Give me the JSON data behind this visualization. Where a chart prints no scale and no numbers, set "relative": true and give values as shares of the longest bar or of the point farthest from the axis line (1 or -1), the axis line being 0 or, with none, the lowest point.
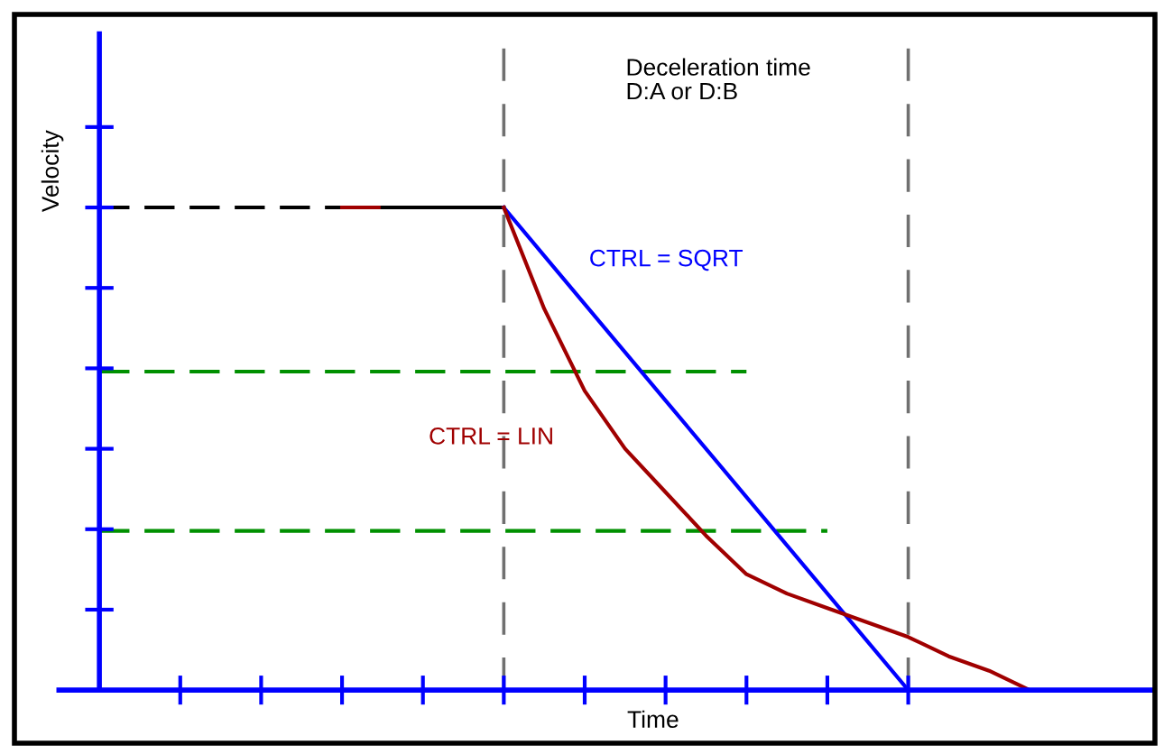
{
  "chart_data": {
    "type": "line",
    "relative": true,
    "xlabel": "Time",
    "ylabel": "Velocity",
    "annotations": [
      "Deceleration time\nD:A or D:B"
    ],
    "categories": [
      null,
      null,
      null,
      null,
      null,
      null,
      null,
      null,
      null,
      null,
      null,
      null,
      null,
      null,
      null,
      null,
      null,
      null,
      null,
      null,
      null,
      null,
      null,
      null,
      null,
      null,
      null
    ],
    "legend": false,
    "marker": "none",
    "series": [
      {
        "color": "#000000",
        "line_style": "dashed",
        "values": [
          1,
          1,
          1,
          1,
          1,
          1,
          1,
          null,
          null,
          null,
          null,
          null,
          null,
          null,
          null,
          null,
          null,
          null,
          null,
          null,
          null,
          null,
          null,
          null,
          null,
          null,
          null
        ]
      },
      {
        "color": "#a00000",
        "line_style": "solid",
        "values": [
          null,
          null,
          null,
          null,
          null,
          null,
          1,
          1,
          null,
          null,
          null,
          null,
          null,
          null,
          null,
          null,
          null,
          null,
          null,
          null,
          null,
          null,
          null,
          null,
          null,
          null,
          null
        ]
      },
      {
        "color": "#000000",
        "line_style": "solid",
        "values": [
          null,
          null,
          null,
          null,
          null,
          null,
          null,
          1,
          1,
          1,
          1,
          null,
          null,
          null,
          null,
          null,
          null,
          null,
          null,
          null,
          null,
          null,
          null,
          null,
          null,
          null,
          null
        ]
      },
      {
        "color": "#009000",
        "line_style": "dashed",
        "values": [
          0.66,
          0.66,
          0.66,
          0.66,
          0.66,
          0.66,
          0.66,
          0.66,
          0.66,
          0.66,
          0.66,
          0.66,
          0.66,
          0.66,
          0.66,
          0.66,
          0.66,
          null,
          null,
          null,
          null,
          null,
          null,
          null,
          null,
          null,
          null
        ]
      },
      {
        "color": "#009000",
        "line_style": "dashed",
        "values": [
          0.33,
          0.33,
          0.33,
          0.33,
          0.33,
          0.33,
          0.33,
          0.33,
          0.33,
          0.33,
          0.33,
          0.33,
          0.33,
          0.33,
          0.33,
          0.33,
          0.33,
          0.33,
          0.33,
          null,
          null,
          null,
          null,
          null,
          null,
          null,
          null
        ]
      },
      {
        "name": "CTRL = SQRT",
        "color": "#0000ff",
        "line_style": "solid",
        "values": [
          null,
          null,
          null,
          null,
          null,
          null,
          null,
          null,
          null,
          null,
          1,
          0.9,
          0.8,
          0.7,
          0.6,
          0.5,
          0.4,
          0.3,
          0.2,
          0.1,
          0,
          null,
          null,
          null,
          null,
          null,
          null
        ]
      },
      {
        "name": "CTRL = LIN",
        "color": "#a00000",
        "line_style": "solid",
        "values": [
          null,
          null,
          null,
          null,
          null,
          null,
          null,
          null,
          null,
          null,
          1,
          0.79,
          0.62,
          0.5,
          0.41,
          0.32,
          0.24,
          0.2,
          0.17,
          0.14,
          0.11,
          0.07,
          0.04,
          0,
          null,
          null,
          null
        ]
      }
    ]
  }
}
